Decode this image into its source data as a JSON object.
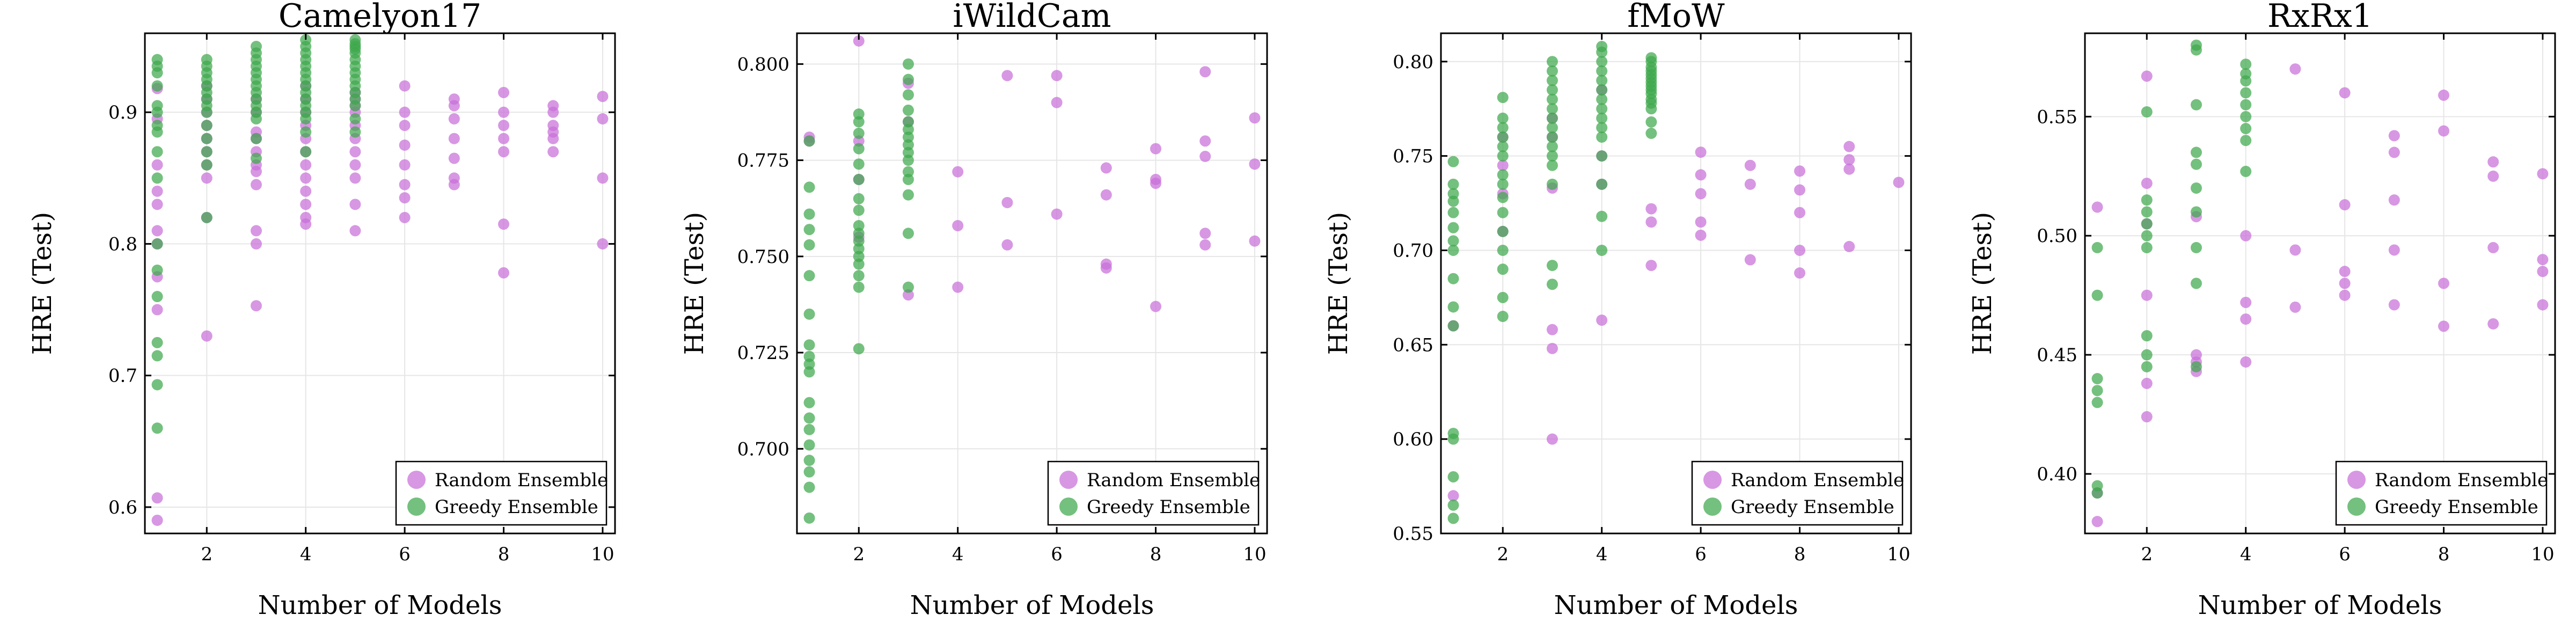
{
  "colors": {
    "random": "#c86fd8",
    "greedy": "#3fa84c"
  },
  "chart_data": [
    {
      "type": "scatter",
      "title": "Camelyon17",
      "xlabel": "Number of Models",
      "ylabel": "HRE (Test)",
      "xlim": [
        0.75,
        10.25
      ],
      "ylim": [
        0.58,
        0.96
      ],
      "xticks": [
        2,
        4,
        6,
        8,
        10
      ],
      "yticks": [
        0.6,
        0.7,
        0.8,
        0.9
      ],
      "ytick_labels": [
        "0.6",
        "0.7",
        "0.8",
        "0.9"
      ],
      "legend_position": "bottom-right",
      "series": [
        {
          "name": "Random Ensemble",
          "color": "random",
          "x": [
            1,
            1,
            1,
            1,
            1,
            1,
            1,
            1,
            1,
            1,
            1,
            2,
            2,
            2,
            2,
            2,
            2,
            2,
            2,
            2,
            2,
            3,
            3,
            3,
            3,
            3,
            3,
            3,
            3,
            3,
            3,
            3,
            4,
            4,
            4,
            4,
            4,
            4,
            4,
            4,
            4,
            4,
            4,
            4,
            5,
            5,
            5,
            5,
            5,
            5,
            5,
            5,
            5,
            5,
            5,
            6,
            6,
            6,
            6,
            6,
            6,
            6,
            6,
            7,
            7,
            7,
            7,
            7,
            7,
            7,
            8,
            8,
            8,
            8,
            8,
            8,
            8,
            9,
            9,
            9,
            9,
            9,
            9,
            10,
            10,
            10,
            10
          ],
          "y": [
            0.59,
            0.607,
            0.75,
            0.775,
            0.8,
            0.81,
            0.83,
            0.84,
            0.86,
            0.895,
            0.918,
            0.73,
            0.82,
            0.85,
            0.86,
            0.87,
            0.88,
            0.89,
            0.9,
            0.91,
            0.92,
            0.753,
            0.8,
            0.81,
            0.845,
            0.855,
            0.86,
            0.87,
            0.88,
            0.885,
            0.9,
            0.91,
            0.815,
            0.82,
            0.83,
            0.84,
            0.85,
            0.86,
            0.87,
            0.88,
            0.89,
            0.9,
            0.91,
            0.92,
            0.81,
            0.83,
            0.85,
            0.86,
            0.87,
            0.88,
            0.89,
            0.9,
            0.905,
            0.91,
            0.915,
            0.82,
            0.835,
            0.845,
            0.86,
            0.875,
            0.89,
            0.9,
            0.92,
            0.845,
            0.85,
            0.865,
            0.88,
            0.895,
            0.905,
            0.91,
            0.778,
            0.815,
            0.87,
            0.88,
            0.89,
            0.9,
            0.915,
            0.87,
            0.88,
            0.885,
            0.89,
            0.9,
            0.905,
            0.8,
            0.85,
            0.895,
            0.912
          ]
        },
        {
          "name": "Greedy Ensemble",
          "color": "greedy",
          "x": [
            1,
            1,
            1,
            1,
            1,
            1,
            1,
            1,
            1,
            1,
            1,
            1,
            1,
            1,
            1,
            1,
            1,
            2,
            2,
            2,
            2,
            2,
            2,
            2,
            2,
            2,
            2,
            2,
            2,
            2,
            2,
            3,
            3,
            3,
            3,
            3,
            3,
            3,
            3,
            3,
            3,
            3,
            3,
            3,
            3,
            4,
            4,
            4,
            4,
            4,
            4,
            4,
            4,
            4,
            4,
            4,
            4,
            4,
            4,
            4,
            5,
            5,
            5,
            5,
            5,
            5,
            5,
            5,
            5,
            5,
            5,
            5,
            5,
            5,
            5
          ],
          "y": [
            0.66,
            0.693,
            0.715,
            0.725,
            0.76,
            0.78,
            0.8,
            0.85,
            0.87,
            0.885,
            0.89,
            0.9,
            0.905,
            0.92,
            0.93,
            0.935,
            0.94,
            0.82,
            0.86,
            0.87,
            0.88,
            0.89,
            0.9,
            0.905,
            0.91,
            0.915,
            0.92,
            0.925,
            0.93,
            0.935,
            0.94,
            0.865,
            0.88,
            0.895,
            0.9,
            0.905,
            0.91,
            0.915,
            0.92,
            0.925,
            0.93,
            0.935,
            0.94,
            0.945,
            0.95,
            0.87,
            0.885,
            0.895,
            0.9,
            0.905,
            0.91,
            0.915,
            0.92,
            0.925,
            0.93,
            0.935,
            0.94,
            0.945,
            0.95,
            0.955,
            0.885,
            0.895,
            0.905,
            0.91,
            0.915,
            0.92,
            0.925,
            0.93,
            0.935,
            0.94,
            0.945,
            0.948,
            0.95,
            0.952,
            0.955
          ]
        }
      ]
    },
    {
      "type": "scatter",
      "title": "iWildCam",
      "xlabel": "Number of Models",
      "ylabel": "HRE (Test)",
      "xlim": [
        0.75,
        10.25
      ],
      "ylim": [
        0.678,
        0.808
      ],
      "xticks": [
        2,
        4,
        6,
        8,
        10
      ],
      "yticks": [
        0.7,
        0.725,
        0.75,
        0.775,
        0.8
      ],
      "ytick_labels": [
        "0.700",
        "0.725",
        "0.750",
        "0.775",
        "0.800"
      ],
      "legend_position": "bottom-right",
      "series": [
        {
          "name": "Random Ensemble",
          "color": "random",
          "x": [
            1,
            1,
            2,
            2,
            2,
            2,
            3,
            3,
            3,
            4,
            4,
            4,
            5,
            5,
            5,
            6,
            6,
            6,
            7,
            7,
            7,
            7,
            8,
            8,
            8,
            8,
            9,
            9,
            9,
            9,
            9,
            10,
            10,
            10
          ],
          "y": [
            0.78,
            0.781,
            0.806,
            0.78,
            0.77,
            0.755,
            0.74,
            0.785,
            0.795,
            0.742,
            0.758,
            0.772,
            0.753,
            0.764,
            0.797,
            0.761,
            0.79,
            0.797,
            0.747,
            0.748,
            0.766,
            0.773,
            0.737,
            0.769,
            0.77,
            0.778,
            0.753,
            0.756,
            0.776,
            0.78,
            0.798,
            0.754,
            0.774,
            0.786
          ]
        },
        {
          "name": "Greedy Ensemble",
          "color": "greedy",
          "x": [
            1,
            1,
            1,
            1,
            1,
            1,
            1,
            1,
            1,
            1,
            1,
            1,
            1,
            1,
            1,
            1,
            1,
            1,
            1,
            2,
            2,
            2,
            2,
            2,
            2,
            2,
            2,
            2,
            2,
            2,
            2,
            2,
            2,
            2,
            2,
            2,
            3,
            3,
            3,
            3,
            3,
            3,
            3,
            3,
            3,
            3,
            3,
            3,
            3,
            3,
            3
          ],
          "y": [
            0.682,
            0.69,
            0.694,
            0.697,
            0.701,
            0.705,
            0.708,
            0.712,
            0.72,
            0.722,
            0.724,
            0.727,
            0.735,
            0.745,
            0.753,
            0.757,
            0.761,
            0.768,
            0.78,
            0.726,
            0.742,
            0.745,
            0.748,
            0.75,
            0.752,
            0.754,
            0.756,
            0.758,
            0.762,
            0.765,
            0.77,
            0.774,
            0.778,
            0.782,
            0.785,
            0.787,
            0.742,
            0.756,
            0.766,
            0.77,
            0.772,
            0.775,
            0.777,
            0.779,
            0.781,
            0.783,
            0.785,
            0.788,
            0.792,
            0.796,
            0.8
          ]
        }
      ]
    },
    {
      "type": "scatter",
      "title": "fMoW",
      "xlabel": "Number of Models",
      "ylabel": "HRE (Test)",
      "xlim": [
        0.75,
        10.25
      ],
      "ylim": [
        0.55,
        0.815
      ],
      "xticks": [
        2,
        4,
        6,
        8,
        10
      ],
      "yticks": [
        0.55,
        0.6,
        0.65,
        0.7,
        0.75,
        0.8
      ],
      "ytick_labels": [
        "0.55",
        "0.60",
        "0.65",
        "0.70",
        "0.75",
        "0.80"
      ],
      "legend_position": "bottom-right",
      "series": [
        {
          "name": "Random Ensemble",
          "color": "random",
          "x": [
            1,
            1,
            2,
            2,
            2,
            2,
            3,
            3,
            3,
            3,
            3,
            3,
            4,
            4,
            4,
            4,
            5,
            5,
            5,
            6,
            6,
            6,
            6,
            6,
            7,
            7,
            7,
            8,
            8,
            8,
            8,
            8,
            9,
            9,
            9,
            9,
            10
          ],
          "y": [
            0.57,
            0.66,
            0.71,
            0.73,
            0.745,
            0.76,
            0.6,
            0.648,
            0.658,
            0.733,
            0.76,
            0.77,
            0.663,
            0.735,
            0.75,
            0.785,
            0.692,
            0.715,
            0.722,
            0.708,
            0.715,
            0.73,
            0.74,
            0.752,
            0.695,
            0.735,
            0.745,
            0.688,
            0.7,
            0.72,
            0.732,
            0.742,
            0.702,
            0.743,
            0.748,
            0.755,
            0.736
          ]
        },
        {
          "name": "Greedy Ensemble",
          "color": "greedy",
          "x": [
            1,
            1,
            1,
            1,
            1,
            1,
            1,
            1,
            1,
            1,
            1,
            1,
            1,
            1,
            1,
            1,
            2,
            2,
            2,
            2,
            2,
            2,
            2,
            2,
            2,
            2,
            2,
            2,
            2,
            2,
            2,
            3,
            3,
            3,
            3,
            3,
            3,
            3,
            3,
            3,
            3,
            3,
            3,
            3,
            3,
            3,
            4,
            4,
            4,
            4,
            4,
            4,
            4,
            4,
            4,
            4,
            4,
            4,
            4,
            4,
            4,
            5,
            5,
            5,
            5,
            5,
            5,
            5,
            5,
            5,
            5,
            5,
            5,
            5,
            5,
            5
          ],
          "y": [
            0.558,
            0.565,
            0.58,
            0.6,
            0.603,
            0.66,
            0.67,
            0.685,
            0.7,
            0.705,
            0.712,
            0.72,
            0.726,
            0.73,
            0.735,
            0.747,
            0.665,
            0.675,
            0.69,
            0.7,
            0.71,
            0.72,
            0.728,
            0.735,
            0.74,
            0.75,
            0.755,
            0.76,
            0.765,
            0.77,
            0.781,
            0.682,
            0.692,
            0.735,
            0.745,
            0.75,
            0.755,
            0.76,
            0.765,
            0.77,
            0.775,
            0.78,
            0.785,
            0.79,
            0.795,
            0.8,
            0.7,
            0.718,
            0.735,
            0.75,
            0.76,
            0.765,
            0.77,
            0.775,
            0.78,
            0.785,
            0.79,
            0.795,
            0.8,
            0.805,
            0.808,
            0.762,
            0.768,
            0.775,
            0.778,
            0.78,
            0.783,
            0.785,
            0.787,
            0.789,
            0.791,
            0.793,
            0.795,
            0.797,
            0.8,
            0.802
          ]
        }
      ]
    },
    {
      "type": "scatter",
      "title": "RxRx1",
      "xlabel": "Number of Models",
      "ylabel": "HRE (Test)",
      "xlim": [
        0.75,
        10.25
      ],
      "ylim": [
        0.375,
        0.585
      ],
      "xticks": [
        2,
        4,
        6,
        8,
        10
      ],
      "yticks": [
        0.4,
        0.45,
        0.5,
        0.55
      ],
      "ytick_labels": [
        "0.40",
        "0.45",
        "0.50",
        "0.55"
      ],
      "legend_position": "bottom-right",
      "series": [
        {
          "name": "Random Ensemble",
          "color": "random",
          "x": [
            1,
            1,
            1,
            2,
            2,
            2,
            2,
            2,
            2,
            3,
            3,
            3,
            3,
            4,
            4,
            4,
            4,
            5,
            5,
            5,
            6,
            6,
            6,
            6,
            6,
            7,
            7,
            7,
            7,
            7,
            8,
            8,
            8,
            8,
            9,
            9,
            9,
            9,
            10,
            10,
            10,
            10
          ],
          "y": [
            0.38,
            0.392,
            0.512,
            0.424,
            0.438,
            0.475,
            0.505,
            0.522,
            0.567,
            0.443,
            0.447,
            0.45,
            0.508,
            0.447,
            0.465,
            0.472,
            0.5,
            0.47,
            0.494,
            0.57,
            0.475,
            0.48,
            0.485,
            0.513,
            0.56,
            0.471,
            0.494,
            0.515,
            0.535,
            0.542,
            0.462,
            0.48,
            0.544,
            0.559,
            0.463,
            0.495,
            0.525,
            0.531,
            0.471,
            0.485,
            0.49,
            0.526
          ]
        },
        {
          "name": "Greedy Ensemble",
          "color": "greedy",
          "x": [
            1,
            1,
            1,
            1,
            1,
            1,
            1,
            2,
            2,
            2,
            2,
            2,
            2,
            2,
            2,
            2,
            3,
            3,
            3,
            3,
            3,
            3,
            3,
            3,
            3,
            3,
            4,
            4,
            4,
            4,
            4,
            4,
            4,
            4,
            4
          ],
          "y": [
            0.392,
            0.395,
            0.43,
            0.435,
            0.44,
            0.475,
            0.495,
            0.445,
            0.45,
            0.458,
            0.495,
            0.5,
            0.505,
            0.51,
            0.515,
            0.552,
            0.445,
            0.48,
            0.495,
            0.51,
            0.52,
            0.53,
            0.535,
            0.555,
            0.578,
            0.58,
            0.527,
            0.54,
            0.545,
            0.55,
            0.555,
            0.56,
            0.565,
            0.568,
            0.572
          ]
        }
      ]
    }
  ]
}
